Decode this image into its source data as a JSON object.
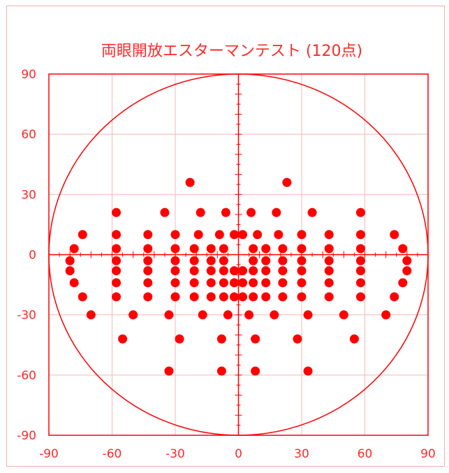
{
  "chart_data": {
    "type": "scatter",
    "title": "両眼開放エスターマンテスト (120点)",
    "xlabel": "",
    "ylabel": "",
    "xlim": [
      -90,
      90
    ],
    "ylim": [
      -90,
      90
    ],
    "xticks": [
      "-90",
      "-60",
      "-30",
      "0",
      "30",
      "60",
      "90"
    ],
    "yticks": [
      "90",
      "60",
      "30",
      "0",
      "-30",
      "-60",
      "-90"
    ],
    "grid": true,
    "color": "#ff0000",
    "points": [
      [
        -23,
        36
      ],
      [
        23,
        36
      ],
      [
        -58,
        21
      ],
      [
        -35,
        21
      ],
      [
        -18,
        21
      ],
      [
        -6,
        21
      ],
      [
        6,
        21
      ],
      [
        18,
        21
      ],
      [
        35,
        21
      ],
      [
        58,
        21
      ],
      [
        -74,
        10
      ],
      [
        -58,
        10
      ],
      [
        -43,
        10
      ],
      [
        -30,
        10
      ],
      [
        -19,
        10
      ],
      [
        -9,
        10
      ],
      [
        -2,
        10
      ],
      [
        2,
        10
      ],
      [
        9,
        10
      ],
      [
        19,
        10
      ],
      [
        30,
        10
      ],
      [
        43,
        10
      ],
      [
        58,
        10
      ],
      [
        74,
        10
      ],
      [
        -78,
        3
      ],
      [
        -58,
        3
      ],
      [
        -43,
        3
      ],
      [
        -30,
        3
      ],
      [
        -21,
        3
      ],
      [
        -13,
        3
      ],
      [
        -7,
        3
      ],
      [
        7,
        3
      ],
      [
        13,
        3
      ],
      [
        21,
        3
      ],
      [
        30,
        3
      ],
      [
        43,
        3
      ],
      [
        58,
        3
      ],
      [
        78,
        3
      ],
      [
        -80,
        -3
      ],
      [
        -58,
        -3
      ],
      [
        -43,
        -3
      ],
      [
        -30,
        -3
      ],
      [
        -21,
        -3
      ],
      [
        -13,
        -3
      ],
      [
        -7,
        -3
      ],
      [
        7,
        -3
      ],
      [
        13,
        -3
      ],
      [
        21,
        -3
      ],
      [
        30,
        -3
      ],
      [
        43,
        -3
      ],
      [
        58,
        -3
      ],
      [
        80,
        -3
      ],
      [
        -80,
        -8
      ],
      [
        -58,
        -8
      ],
      [
        -43,
        -8
      ],
      [
        -30,
        -8
      ],
      [
        -21,
        -8
      ],
      [
        -13,
        -8
      ],
      [
        -7,
        -8
      ],
      [
        -2,
        -8
      ],
      [
        2,
        -8
      ],
      [
        7,
        -8
      ],
      [
        13,
        -8
      ],
      [
        21,
        -8
      ],
      [
        30,
        -8
      ],
      [
        43,
        -8
      ],
      [
        58,
        -8
      ],
      [
        80,
        -8
      ],
      [
        -78,
        -14
      ],
      [
        -58,
        -14
      ],
      [
        -43,
        -14
      ],
      [
        -30,
        -14
      ],
      [
        -21,
        -14
      ],
      [
        -13,
        -14
      ],
      [
        -7,
        -14
      ],
      [
        -2,
        -14
      ],
      [
        2,
        -14
      ],
      [
        7,
        -14
      ],
      [
        13,
        -14
      ],
      [
        21,
        -14
      ],
      [
        30,
        -14
      ],
      [
        43,
        -14
      ],
      [
        58,
        -14
      ],
      [
        78,
        -14
      ],
      [
        -74,
        -21
      ],
      [
        -58,
        -21
      ],
      [
        -43,
        -21
      ],
      [
        -30,
        -21
      ],
      [
        -21,
        -21
      ],
      [
        -13,
        -21
      ],
      [
        -7,
        -21
      ],
      [
        -2,
        -21
      ],
      [
        2,
        -21
      ],
      [
        7,
        -21
      ],
      [
        13,
        -21
      ],
      [
        21,
        -21
      ],
      [
        30,
        -21
      ],
      [
        43,
        -21
      ],
      [
        58,
        -21
      ],
      [
        74,
        -21
      ],
      [
        -70,
        -30
      ],
      [
        -50,
        -30
      ],
      [
        -33,
        -30
      ],
      [
        -17,
        -30
      ],
      [
        -5,
        -30
      ],
      [
        5,
        -30
      ],
      [
        17,
        -30
      ],
      [
        33,
        -30
      ],
      [
        50,
        -30
      ],
      [
        70,
        -30
      ],
      [
        -55,
        -42
      ],
      [
        -28,
        -42
      ],
      [
        -8,
        -42
      ],
      [
        8,
        -42
      ],
      [
        28,
        -42
      ],
      [
        55,
        -42
      ],
      [
        -33,
        -58
      ],
      [
        -8,
        -58
      ],
      [
        8,
        -58
      ],
      [
        33,
        -58
      ]
    ]
  }
}
